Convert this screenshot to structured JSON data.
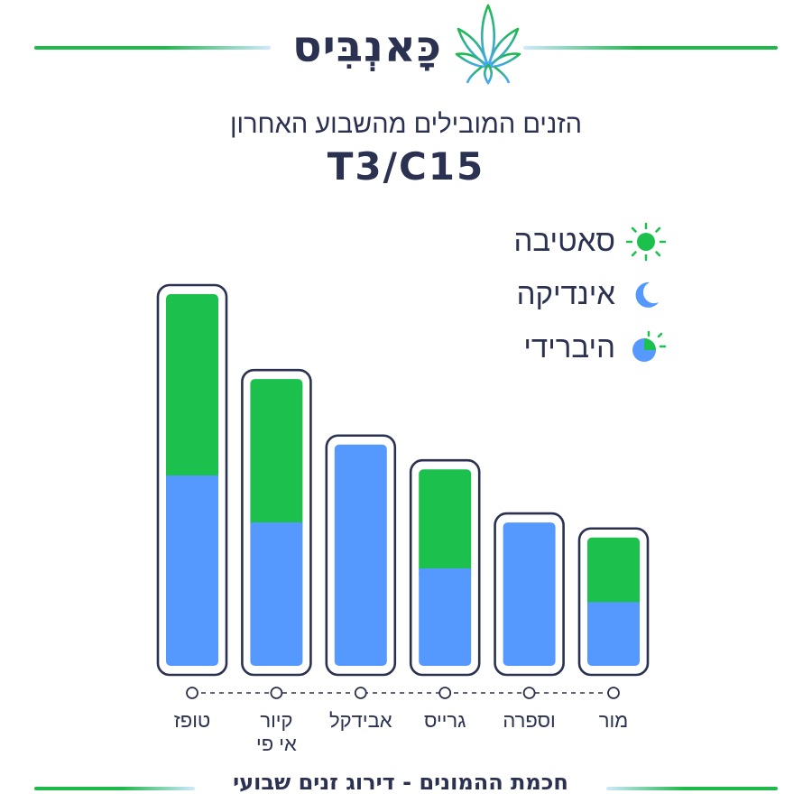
{
  "brand": {
    "name": "כָּאנְבִּיס",
    "leaf_icon": "cannabis-leaf-icon"
  },
  "header": {
    "subtitle": "הזנים המובילים מהשבוע האחרון",
    "title": "T3/C15"
  },
  "legend": [
    {
      "label": "סאטיבה",
      "icon": "sun-icon"
    },
    {
      "label": "אינדיקה",
      "icon": "moon-icon"
    },
    {
      "label": "היברידי",
      "icon": "half-sun-moon-icon"
    }
  ],
  "colors": {
    "sativa": "#1cc14d",
    "indica": "#5599ff",
    "outline": "#2b3150"
  },
  "chart_data": {
    "type": "bar",
    "stacked": true,
    "categories": [
      "טופז",
      "קיור\nאי פי",
      "אבידקל",
      "גרייס",
      "וספרה",
      "מור"
    ],
    "series": [
      {
        "name": "אינדיקה",
        "values": [
          215,
          162,
          250,
          110,
          162,
          72
        ]
      },
      {
        "name": "סאטיבה",
        "values": [
          205,
          162,
          0,
          112,
          0,
          73
        ]
      }
    ],
    "ylim": [
      0,
      420
    ]
  },
  "footer": {
    "text": "חכמת ההמונים - דירוג זנים שבועי"
  }
}
